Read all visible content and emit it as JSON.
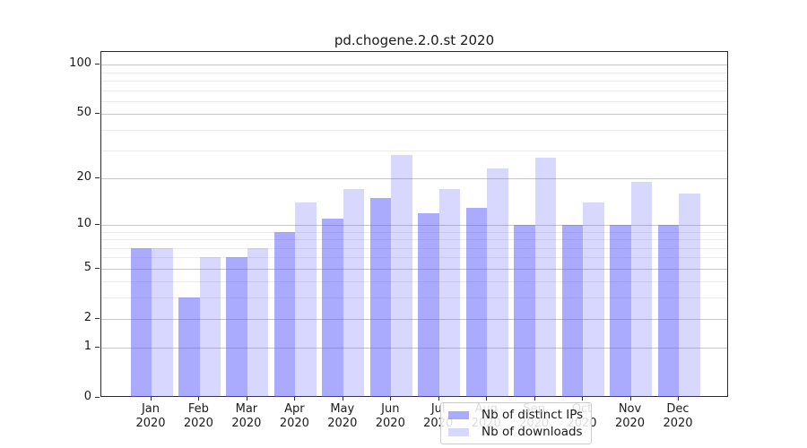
{
  "title": "pd.chogene.2.0.st 2020",
  "chart_data": {
    "type": "bar",
    "title": "pd.chogene.2.0.st 2020",
    "categories": [
      "Jan",
      "Feb",
      "Mar",
      "Apr",
      "May",
      "Jun",
      "Jul",
      "Aug",
      "Sep",
      "Oct",
      "Nov",
      "Dec"
    ],
    "category_year": "2020",
    "series": [
      {
        "name": "Nb of distinct IPs",
        "key": "distinct-ips",
        "color": "rgba(85,85,255,0.50)",
        "values": [
          7,
          3,
          6,
          9,
          11,
          15,
          12,
          13,
          10,
          10,
          10,
          10
        ]
      },
      {
        "name": "Nb of downloads",
        "key": "downloads",
        "color": "rgba(85,85,255,0.23)",
        "values": [
          7,
          6,
          7,
          14,
          17,
          28,
          17,
          23,
          27,
          14,
          19,
          16
        ]
      }
    ],
    "xlabel": "",
    "ylabel": "",
    "yscale": "log1p",
    "ylim": [
      0,
      120
    ],
    "yticks": [
      0,
      1,
      2,
      5,
      10,
      20,
      50,
      100
    ],
    "ytick_labels": [
      "0",
      "1",
      "2",
      "5",
      "10",
      "20",
      "50",
      "100"
    ],
    "minor_gridlines": [
      3,
      4,
      6,
      7,
      8,
      9,
      30,
      40,
      60,
      70,
      80,
      90
    ],
    "grid": "horizontal",
    "legend_position": "lower center",
    "colors": {
      "bar_base": "#5555ff",
      "grid_major": "#c7c7c7",
      "grid_minor": "#ebebeb",
      "spine": "#2a2a2a",
      "text": "#1a1a1a"
    }
  }
}
